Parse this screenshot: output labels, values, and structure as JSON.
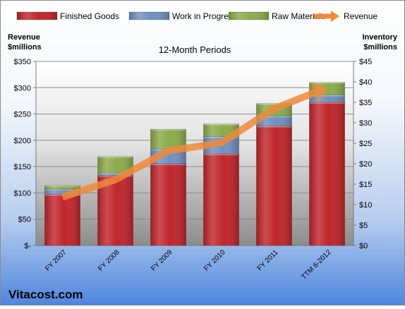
{
  "chart_data": {
    "type": "bar",
    "stacked": true,
    "title": "12-Month Periods",
    "ylabel_left": "Revenue\n$millions",
    "ylabel_right": "Inventory\n$millions",
    "categories": [
      "FY 2007",
      "FY 2008",
      "FY 2009",
      "FY 2010",
      "FY 2011",
      "TTM 6-2012"
    ],
    "ylim_left": [
      0,
      350
    ],
    "left_ticks": [
      0,
      50,
      100,
      150,
      200,
      250,
      300,
      350
    ],
    "left_tick_labels": [
      "$-",
      "$50",
      "$100",
      "$150",
      "$200",
      "$250",
      "$300",
      "$350"
    ],
    "ylim_right": [
      0,
      45
    ],
    "right_ticks": [
      0,
      5,
      10,
      15,
      20,
      25,
      30,
      35,
      40,
      45
    ],
    "right_tick_labels": [
      "$0",
      "$5",
      "$10",
      "$15",
      "$20",
      "$25",
      "$30",
      "$35",
      "$40",
      "$45"
    ],
    "series": [
      {
        "name": "Finished Goods",
        "axis": "left",
        "kind": "bar",
        "color": "#c0262b",
        "values": [
          97,
          133,
          155,
          174,
          227,
          272
        ]
      },
      {
        "name": "Work in Progress",
        "axis": "left",
        "kind": "bar",
        "color": "#6f8fc0",
        "values": [
          10,
          5,
          28,
          33,
          19,
          14
        ]
      },
      {
        "name": "Raw Materials",
        "axis": "left",
        "kind": "bar",
        "color": "#8aab4a",
        "values": [
          7,
          31,
          38,
          24,
          24,
          24
        ]
      },
      {
        "name": "Revenue",
        "axis": "left",
        "kind": "line",
        "color": "#ef8a3a",
        "values": [
          92,
          125,
          180,
          195,
          260,
          300
        ]
      }
    ],
    "gridlines": true,
    "legend_position": "top"
  },
  "watermark": "Vitacost.com"
}
